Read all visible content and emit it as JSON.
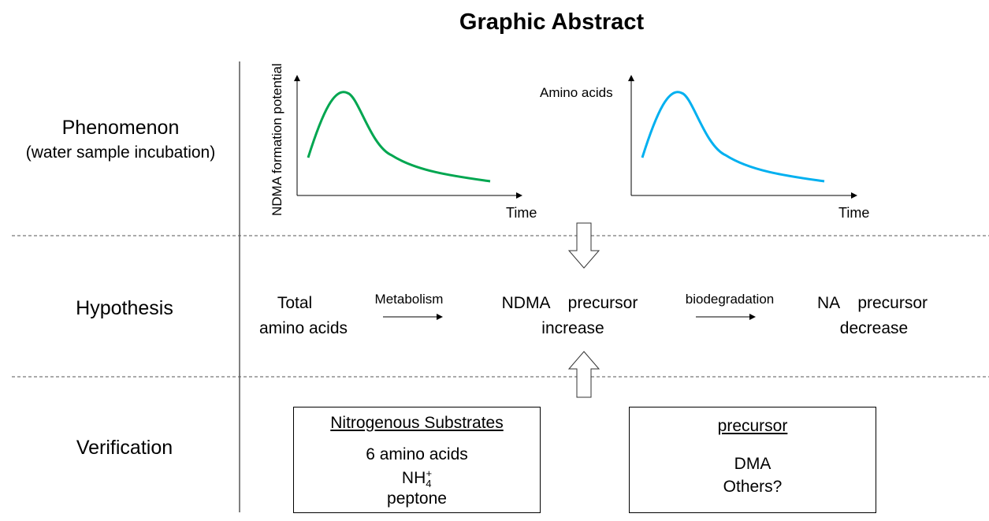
{
  "title": "Graphic Abstract",
  "rows": {
    "phenomenon": {
      "label": "Phenomenon",
      "sublabel": "(water sample incubation)"
    },
    "hypothesis": {
      "label": "Hypothesis"
    },
    "verification": {
      "label": "Verification"
    }
  },
  "charts": {
    "left": {
      "ylabel": "NDMA formation potential",
      "xlabel": "Time",
      "color": "#00a650"
    },
    "right": {
      "ylabel": "Amino acids",
      "xlabel": "Time",
      "color": "#00b0f0"
    }
  },
  "hypothesis": {
    "start_line1": "Total",
    "start_line2": "amino acids",
    "arrow1_label": "Metabolism",
    "mid_line1": "NDMA    precursor",
    "mid_line2": "increase",
    "arrow2_label": "biodegradation",
    "end_line1": "NA    precursor",
    "end_line2": "decrease"
  },
  "verification": {
    "box1": {
      "title": "Nitrogenous Substrates",
      "line1": "6 amino acids",
      "line2_base": "NH",
      "line2_sub": "4",
      "line2_sup": "+",
      "line3": "peptone"
    },
    "box2": {
      "title": "precursor",
      "line1": "DMA",
      "line2": "Others?"
    }
  }
}
